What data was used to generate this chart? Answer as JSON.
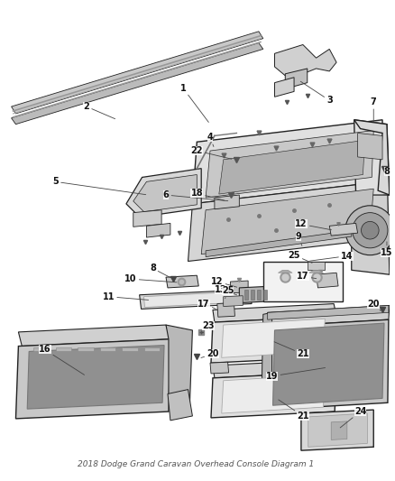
{
  "title": "2018 Dodge Grand Caravan Overhead Console Diagram 1",
  "background_color": "#ffffff",
  "fig_width": 4.38,
  "fig_height": 5.33,
  "line_color": "#222222",
  "label_fontsize": 7.0,
  "dpi": 100
}
